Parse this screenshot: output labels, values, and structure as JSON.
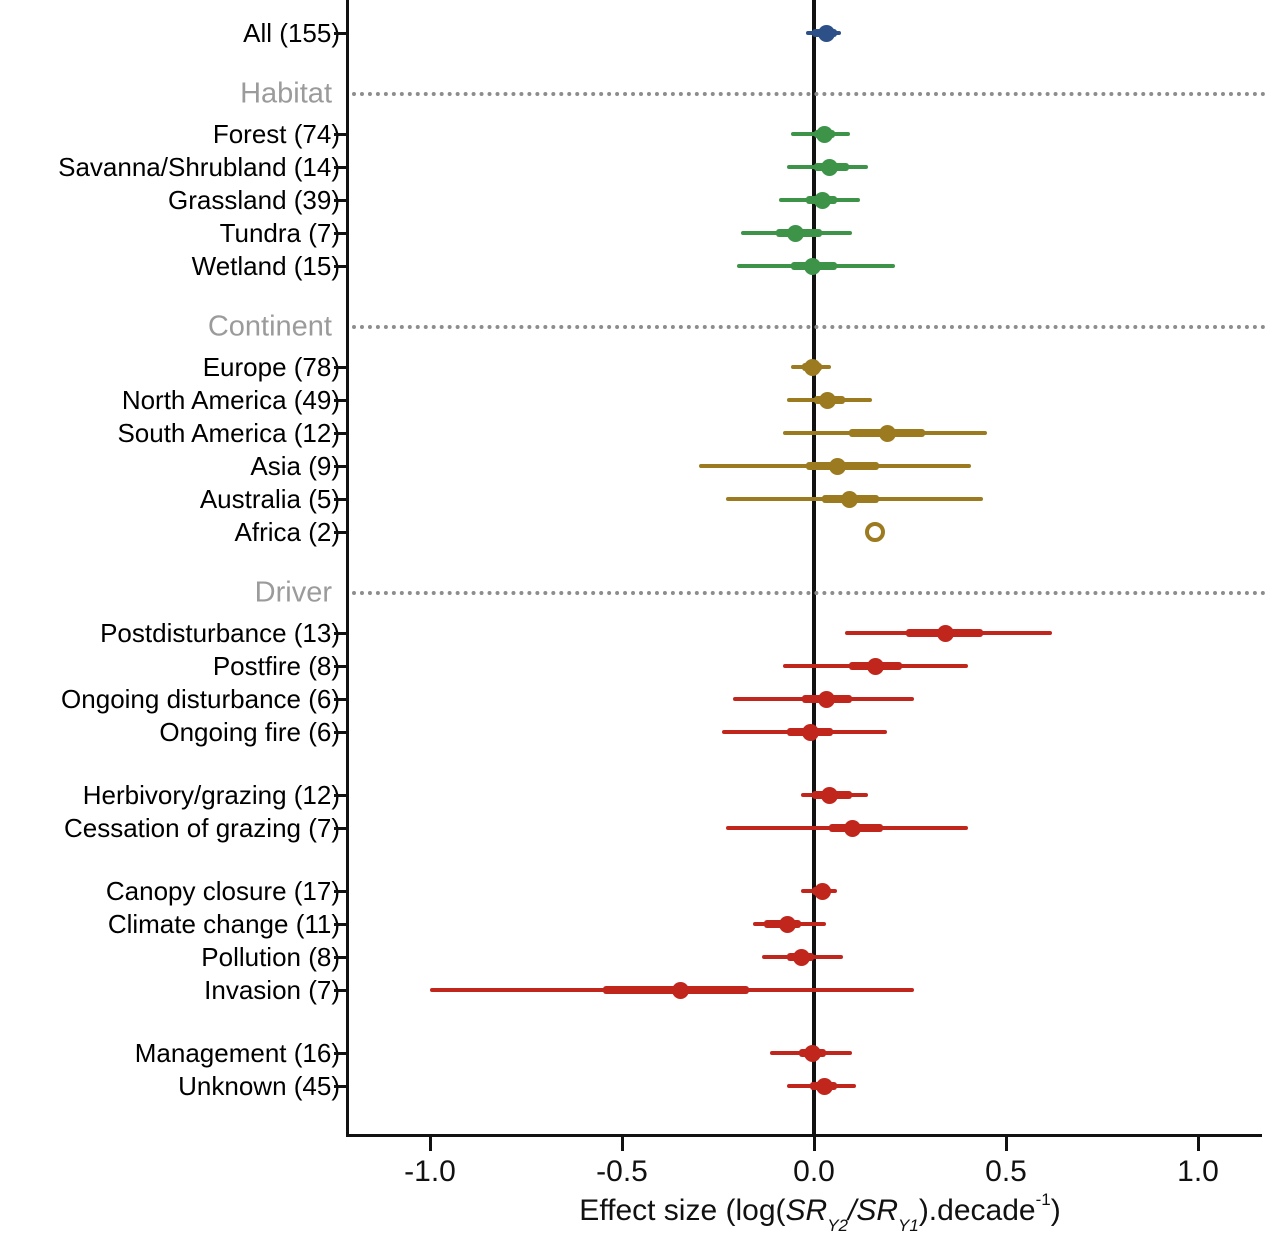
{
  "chart_data": {
    "type": "forest",
    "title": "",
    "xlabel_segments": [
      {
        "t": "Effect size (log(",
        "s": "normal"
      },
      {
        "t": "SR",
        "s": "italic"
      },
      {
        "t": "Y2",
        "s": "sub"
      },
      {
        "t": "/",
        "s": "italic"
      },
      {
        "t": "SR",
        "s": "italic"
      },
      {
        "t": "Y1",
        "s": "sub"
      },
      {
        "t": ").decade",
        "s": "normal"
      },
      {
        "t": "-1",
        "s": "sup"
      },
      {
        "t": ")",
        "s": "normal"
      }
    ],
    "xticks": [
      "-1.0",
      "-0.5",
      "0.0",
      "0.5",
      "1.0"
    ],
    "xtick_values": [
      -1.0,
      -0.5,
      0.0,
      0.5,
      1.0
    ],
    "xlim": [
      -1.21,
      1.17
    ],
    "grid": false,
    "legend": "none",
    "reference_line_x": 0.0,
    "colors": {
      "all": "#2d5089",
      "habitat": "#3d9448",
      "continent": "#9c7b20",
      "driver": "#c1261d",
      "header": "#9b9b9b",
      "axis": "#111111",
      "dotted": "#8d8d8d"
    },
    "rows": [
      {
        "kind": "point",
        "group": "all",
        "label": "All (155)",
        "est": 0.03,
        "inner": [
          -0.005,
          0.06
        ],
        "outer": [
          -0.02,
          0.07
        ]
      },
      {
        "kind": "header",
        "label": "Habitat"
      },
      {
        "kind": "point",
        "group": "habitat",
        "label": "Forest (74)",
        "est": 0.025,
        "inner": [
          0.0,
          0.055
        ],
        "outer": [
          -0.06,
          0.095
        ]
      },
      {
        "kind": "point",
        "group": "habitat",
        "label": "Savanna/Shrubland (14)",
        "est": 0.04,
        "inner": [
          0.0,
          0.09
        ],
        "outer": [
          -0.07,
          0.14
        ]
      },
      {
        "kind": "point",
        "group": "habitat",
        "label": "Grassland (39)",
        "est": 0.02,
        "inner": [
          -0.02,
          0.06
        ],
        "outer": [
          -0.09,
          0.12
        ]
      },
      {
        "kind": "point",
        "group": "habitat",
        "label": "Tundra (7)",
        "est": -0.05,
        "inner": [
          -0.1,
          0.02
        ],
        "outer": [
          -0.19,
          0.1
        ]
      },
      {
        "kind": "point",
        "group": "habitat",
        "label": "Wetland (15)",
        "est": -0.005,
        "inner": [
          -0.06,
          0.06
        ],
        "outer": [
          -0.2,
          0.21
        ]
      },
      {
        "kind": "header",
        "label": "Continent"
      },
      {
        "kind": "point",
        "group": "continent",
        "label": "Europe (78)",
        "est": -0.005,
        "inner": [
          -0.03,
          0.02
        ],
        "outer": [
          -0.06,
          0.045
        ]
      },
      {
        "kind": "point",
        "group": "continent",
        "label": "North America (49)",
        "est": 0.035,
        "inner": [
          0.0,
          0.08
        ],
        "outer": [
          -0.07,
          0.15
        ]
      },
      {
        "kind": "point",
        "group": "continent",
        "label": "South America (12)",
        "est": 0.19,
        "inner": [
          0.09,
          0.29
        ],
        "outer": [
          -0.08,
          0.45
        ]
      },
      {
        "kind": "point",
        "group": "continent",
        "label": "Asia (9)",
        "est": 0.06,
        "inner": [
          -0.02,
          0.17
        ],
        "outer": [
          -0.3,
          0.41
        ]
      },
      {
        "kind": "point",
        "group": "continent",
        "label": "Australia (5)",
        "est": 0.09,
        "inner": [
          0.02,
          0.17
        ],
        "outer": [
          -0.23,
          0.44
        ]
      },
      {
        "kind": "point",
        "group": "continent",
        "label": "Africa (2)",
        "est": 0.16,
        "open": true
      },
      {
        "kind": "header",
        "label": "Driver"
      },
      {
        "kind": "point",
        "group": "driver",
        "label": "Postdisturbance (13)",
        "est": 0.34,
        "inner": [
          0.24,
          0.44
        ],
        "outer": [
          0.08,
          0.62
        ]
      },
      {
        "kind": "point",
        "group": "driver",
        "label": "Postfire (8)",
        "est": 0.16,
        "inner": [
          0.09,
          0.23
        ],
        "outer": [
          -0.08,
          0.4
        ]
      },
      {
        "kind": "point",
        "group": "driver",
        "label": "Ongoing disturbance (6)",
        "est": 0.03,
        "inner": [
          -0.03,
          0.1
        ],
        "outer": [
          -0.21,
          0.26
        ]
      },
      {
        "kind": "point",
        "group": "driver",
        "label": "Ongoing fire (6)",
        "est": -0.01,
        "inner": [
          -0.07,
          0.05
        ],
        "outer": [
          -0.24,
          0.19
        ]
      },
      {
        "kind": "spacer"
      },
      {
        "kind": "point",
        "group": "driver",
        "label": "Herbivory/grazing (12)",
        "est": 0.04,
        "inner": [
          -0.005,
          0.1
        ],
        "outer": [
          -0.035,
          0.14
        ]
      },
      {
        "kind": "point",
        "group": "driver",
        "label": "Cessation of grazing (7)",
        "est": 0.1,
        "inner": [
          0.04,
          0.18
        ],
        "outer": [
          -0.23,
          0.4
        ]
      },
      {
        "kind": "spacer"
      },
      {
        "kind": "point",
        "group": "driver",
        "label": "Canopy closure (17)",
        "est": 0.02,
        "inner": [
          -0.005,
          0.045
        ],
        "outer": [
          -0.035,
          0.06
        ]
      },
      {
        "kind": "point",
        "group": "driver",
        "label": "Climate change (11)",
        "est": -0.07,
        "inner": [
          -0.13,
          -0.035
        ],
        "outer": [
          -0.16,
          0.03
        ]
      },
      {
        "kind": "point",
        "group": "driver",
        "label": "Pollution (8)",
        "est": -0.035,
        "inner": [
          -0.07,
          0.0
        ],
        "outer": [
          -0.135,
          0.075
        ]
      },
      {
        "kind": "point",
        "group": "driver",
        "label": "Invasion (7)",
        "est": -0.35,
        "inner": [
          -0.55,
          -0.17
        ],
        "outer": [
          -1.0,
          0.26
        ]
      },
      {
        "kind": "spacer"
      },
      {
        "kind": "point",
        "group": "driver",
        "label": "Management (16)",
        "est": -0.005,
        "inner": [
          -0.04,
          0.03
        ],
        "outer": [
          -0.115,
          0.1
        ]
      },
      {
        "kind": "point",
        "group": "driver",
        "label": "Unknown (45)",
        "est": 0.025,
        "inner": [
          -0.01,
          0.06
        ],
        "outer": [
          -0.07,
          0.11
        ]
      }
    ]
  }
}
